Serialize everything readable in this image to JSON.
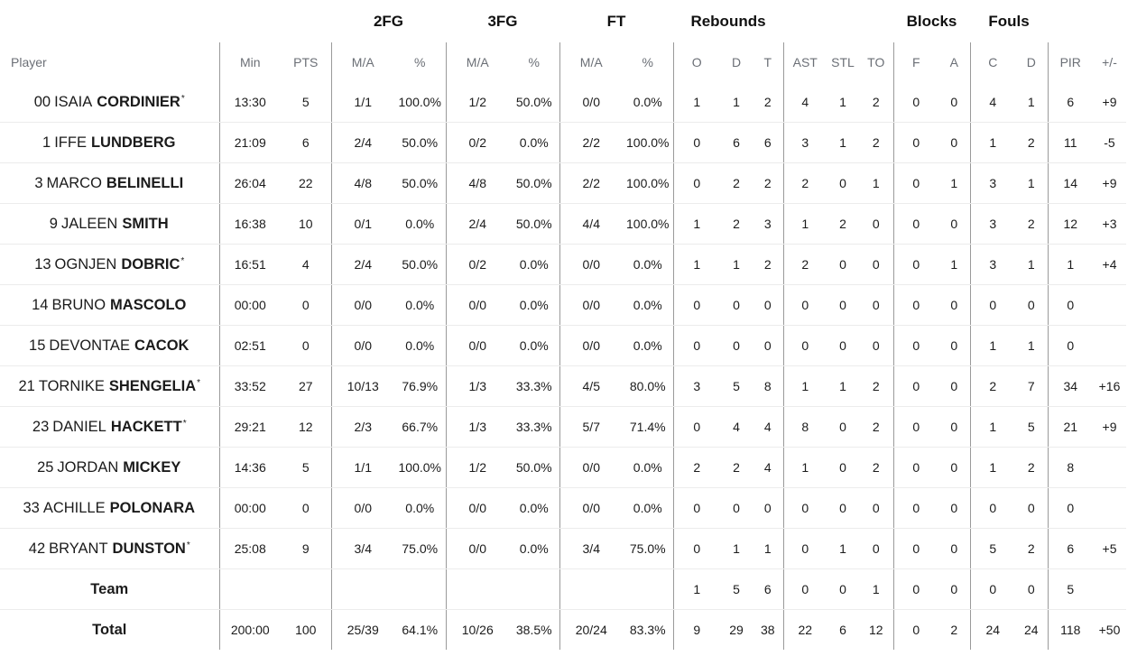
{
  "groups": {
    "fg2": "2FG",
    "fg3": "3FG",
    "ft": "FT",
    "rebounds": "Rebounds",
    "blocks": "Blocks",
    "fouls": "Fouls"
  },
  "columns": {
    "player": "Player",
    "min": "Min",
    "pts": "PTS",
    "fg2_ma": "M/A",
    "fg2_pct": "%",
    "fg3_ma": "M/A",
    "fg3_pct": "%",
    "ft_ma": "M/A",
    "ft_pct": "%",
    "reb_o": "O",
    "reb_d": "D",
    "reb_t": "T",
    "ast": "AST",
    "stl": "STL",
    "to": "TO",
    "blk_f": "F",
    "blk_a": "A",
    "foul_c": "C",
    "foul_d": "D",
    "pir": "PIR",
    "pm": "+/-"
  },
  "players": [
    {
      "num": "00",
      "first": "ISAIA",
      "last": "CORDINIER",
      "star": "*",
      "min": "13:30",
      "pts": "5",
      "fg2_ma": "1/1",
      "fg2_pct": "100.0%",
      "fg3_ma": "1/2",
      "fg3_pct": "50.0%",
      "ft_ma": "0/0",
      "ft_pct": "0.0%",
      "reb_o": "1",
      "reb_d": "1",
      "reb_t": "2",
      "ast": "4",
      "stl": "1",
      "to": "2",
      "blk_f": "0",
      "blk_a": "0",
      "foul_c": "4",
      "foul_d": "1",
      "pir": "6",
      "pm": "+9"
    },
    {
      "num": "1",
      "first": "IFFE",
      "last": "LUNDBERG",
      "star": "",
      "min": "21:09",
      "pts": "6",
      "fg2_ma": "2/4",
      "fg2_pct": "50.0%",
      "fg3_ma": "0/2",
      "fg3_pct": "0.0%",
      "ft_ma": "2/2",
      "ft_pct": "100.0%",
      "reb_o": "0",
      "reb_d": "6",
      "reb_t": "6",
      "ast": "3",
      "stl": "1",
      "to": "2",
      "blk_f": "0",
      "blk_a": "0",
      "foul_c": "1",
      "foul_d": "2",
      "pir": "11",
      "pm": "-5"
    },
    {
      "num": "3",
      "first": "MARCO",
      "last": "BELINELLI",
      "star": "",
      "min": "26:04",
      "pts": "22",
      "fg2_ma": "4/8",
      "fg2_pct": "50.0%",
      "fg3_ma": "4/8",
      "fg3_pct": "50.0%",
      "ft_ma": "2/2",
      "ft_pct": "100.0%",
      "reb_o": "0",
      "reb_d": "2",
      "reb_t": "2",
      "ast": "2",
      "stl": "0",
      "to": "1",
      "blk_f": "0",
      "blk_a": "1",
      "foul_c": "3",
      "foul_d": "1",
      "pir": "14",
      "pm": "+9"
    },
    {
      "num": "9",
      "first": "JALEEN",
      "last": "SMITH",
      "star": "",
      "min": "16:38",
      "pts": "10",
      "fg2_ma": "0/1",
      "fg2_pct": "0.0%",
      "fg3_ma": "2/4",
      "fg3_pct": "50.0%",
      "ft_ma": "4/4",
      "ft_pct": "100.0%",
      "reb_o": "1",
      "reb_d": "2",
      "reb_t": "3",
      "ast": "1",
      "stl": "2",
      "to": "0",
      "blk_f": "0",
      "blk_a": "0",
      "foul_c": "3",
      "foul_d": "2",
      "pir": "12",
      "pm": "+3"
    },
    {
      "num": "13",
      "first": "OGNJEN",
      "last": "DOBRIC",
      "star": "*",
      "min": "16:51",
      "pts": "4",
      "fg2_ma": "2/4",
      "fg2_pct": "50.0%",
      "fg3_ma": "0/2",
      "fg3_pct": "0.0%",
      "ft_ma": "0/0",
      "ft_pct": "0.0%",
      "reb_o": "1",
      "reb_d": "1",
      "reb_t": "2",
      "ast": "2",
      "stl": "0",
      "to": "0",
      "blk_f": "0",
      "blk_a": "1",
      "foul_c": "3",
      "foul_d": "1",
      "pir": "1",
      "pm": "+4"
    },
    {
      "num": "14",
      "first": "BRUNO",
      "last": "MASCOLO",
      "star": "",
      "min": "00:00",
      "pts": "0",
      "fg2_ma": "0/0",
      "fg2_pct": "0.0%",
      "fg3_ma": "0/0",
      "fg3_pct": "0.0%",
      "ft_ma": "0/0",
      "ft_pct": "0.0%",
      "reb_o": "0",
      "reb_d": "0",
      "reb_t": "0",
      "ast": "0",
      "stl": "0",
      "to": "0",
      "blk_f": "0",
      "blk_a": "0",
      "foul_c": "0",
      "foul_d": "0",
      "pir": "0",
      "pm": ""
    },
    {
      "num": "15",
      "first": "DEVONTAE",
      "last": "CACOK",
      "star": "",
      "min": "02:51",
      "pts": "0",
      "fg2_ma": "0/0",
      "fg2_pct": "0.0%",
      "fg3_ma": "0/0",
      "fg3_pct": "0.0%",
      "ft_ma": "0/0",
      "ft_pct": "0.0%",
      "reb_o": "0",
      "reb_d": "0",
      "reb_t": "0",
      "ast": "0",
      "stl": "0",
      "to": "0",
      "blk_f": "0",
      "blk_a": "0",
      "foul_c": "1",
      "foul_d": "1",
      "pir": "0",
      "pm": ""
    },
    {
      "num": "21",
      "first": "TORNIKE",
      "last": "SHENGELIA",
      "star": "*",
      "min": "33:52",
      "pts": "27",
      "fg2_ma": "10/13",
      "fg2_pct": "76.9%",
      "fg3_ma": "1/3",
      "fg3_pct": "33.3%",
      "ft_ma": "4/5",
      "ft_pct": "80.0%",
      "reb_o": "3",
      "reb_d": "5",
      "reb_t": "8",
      "ast": "1",
      "stl": "1",
      "to": "2",
      "blk_f": "0",
      "blk_a": "0",
      "foul_c": "2",
      "foul_d": "7",
      "pir": "34",
      "pm": "+16"
    },
    {
      "num": "23",
      "first": "DANIEL",
      "last": "HACKETT",
      "star": "*",
      "min": "29:21",
      "pts": "12",
      "fg2_ma": "2/3",
      "fg2_pct": "66.7%",
      "fg3_ma": "1/3",
      "fg3_pct": "33.3%",
      "ft_ma": "5/7",
      "ft_pct": "71.4%",
      "reb_o": "0",
      "reb_d": "4",
      "reb_t": "4",
      "ast": "8",
      "stl": "0",
      "to": "2",
      "blk_f": "0",
      "blk_a": "0",
      "foul_c": "1",
      "foul_d": "5",
      "pir": "21",
      "pm": "+9"
    },
    {
      "num": "25",
      "first": "JORDAN",
      "last": "MICKEY",
      "star": "",
      "min": "14:36",
      "pts": "5",
      "fg2_ma": "1/1",
      "fg2_pct": "100.0%",
      "fg3_ma": "1/2",
      "fg3_pct": "50.0%",
      "ft_ma": "0/0",
      "ft_pct": "0.0%",
      "reb_o": "2",
      "reb_d": "2",
      "reb_t": "4",
      "ast": "1",
      "stl": "0",
      "to": "2",
      "blk_f": "0",
      "blk_a": "0",
      "foul_c": "1",
      "foul_d": "2",
      "pir": "8",
      "pm": ""
    },
    {
      "num": "33",
      "first": "ACHILLE",
      "last": "POLONARA",
      "star": "",
      "min": "00:00",
      "pts": "0",
      "fg2_ma": "0/0",
      "fg2_pct": "0.0%",
      "fg3_ma": "0/0",
      "fg3_pct": "0.0%",
      "ft_ma": "0/0",
      "ft_pct": "0.0%",
      "reb_o": "0",
      "reb_d": "0",
      "reb_t": "0",
      "ast": "0",
      "stl": "0",
      "to": "0",
      "blk_f": "0",
      "blk_a": "0",
      "foul_c": "0",
      "foul_d": "0",
      "pir": "0",
      "pm": ""
    },
    {
      "num": "42",
      "first": "BRYANT",
      "last": "DUNSTON",
      "star": "*",
      "min": "25:08",
      "pts": "9",
      "fg2_ma": "3/4",
      "fg2_pct": "75.0%",
      "fg3_ma": "0/0",
      "fg3_pct": "0.0%",
      "ft_ma": "3/4",
      "ft_pct": "75.0%",
      "reb_o": "0",
      "reb_d": "1",
      "reb_t": "1",
      "ast": "0",
      "stl": "1",
      "to": "0",
      "blk_f": "0",
      "blk_a": "0",
      "foul_c": "5",
      "foul_d": "2",
      "pir": "6",
      "pm": "+5"
    }
  ],
  "team": {
    "label": "Team",
    "min": "",
    "pts": "",
    "fg2_ma": "",
    "fg2_pct": "",
    "fg3_ma": "",
    "fg3_pct": "",
    "ft_ma": "",
    "ft_pct": "",
    "reb_o": "1",
    "reb_d": "5",
    "reb_t": "6",
    "ast": "0",
    "stl": "0",
    "to": "1",
    "blk_f": "0",
    "blk_a": "0",
    "foul_c": "0",
    "foul_d": "0",
    "pir": "5",
    "pm": ""
  },
  "total": {
    "label": "Total",
    "min": "200:00",
    "pts": "100",
    "fg2_ma": "25/39",
    "fg2_pct": "64.1%",
    "fg3_ma": "10/26",
    "fg3_pct": "38.5%",
    "ft_ma": "20/24",
    "ft_pct": "83.3%",
    "reb_o": "9",
    "reb_d": "29",
    "reb_t": "38",
    "ast": "22",
    "stl": "6",
    "to": "12",
    "blk_f": "0",
    "blk_a": "2",
    "foul_c": "24",
    "foul_d": "24",
    "pir": "118",
    "pm": "+50"
  }
}
